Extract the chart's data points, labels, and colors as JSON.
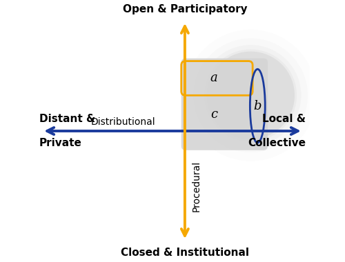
{
  "bg_color": "#ffffff",
  "axis_color": "#1a3a9c",
  "procedural_color": "#f5a800",
  "rect_fill_color": "#d4d4d4",
  "rect_orange_color": "#f5a800",
  "rect_blue_color": "#1a3a9c",
  "blob_color": "#c0c0c0",
  "label_top": "Open & Participatory",
  "label_bottom": "Closed & Institutional",
  "label_left_1": "Distant &",
  "label_left_2": "Private",
  "label_right_1": "Local &",
  "label_right_2": "Collective",
  "label_horiz": "Distributional",
  "label_vert": "Procedural",
  "label_a": "a",
  "label_b": "b",
  "label_c": "c",
  "figsize": [
    5.0,
    3.8
  ],
  "dpi": 100,
  "xlim": [
    -5,
    5
  ],
  "ylim": [
    -4.5,
    4.5
  ],
  "axis_x": 0.0,
  "axis_y": 0.0,
  "vert_x": 0.45
}
